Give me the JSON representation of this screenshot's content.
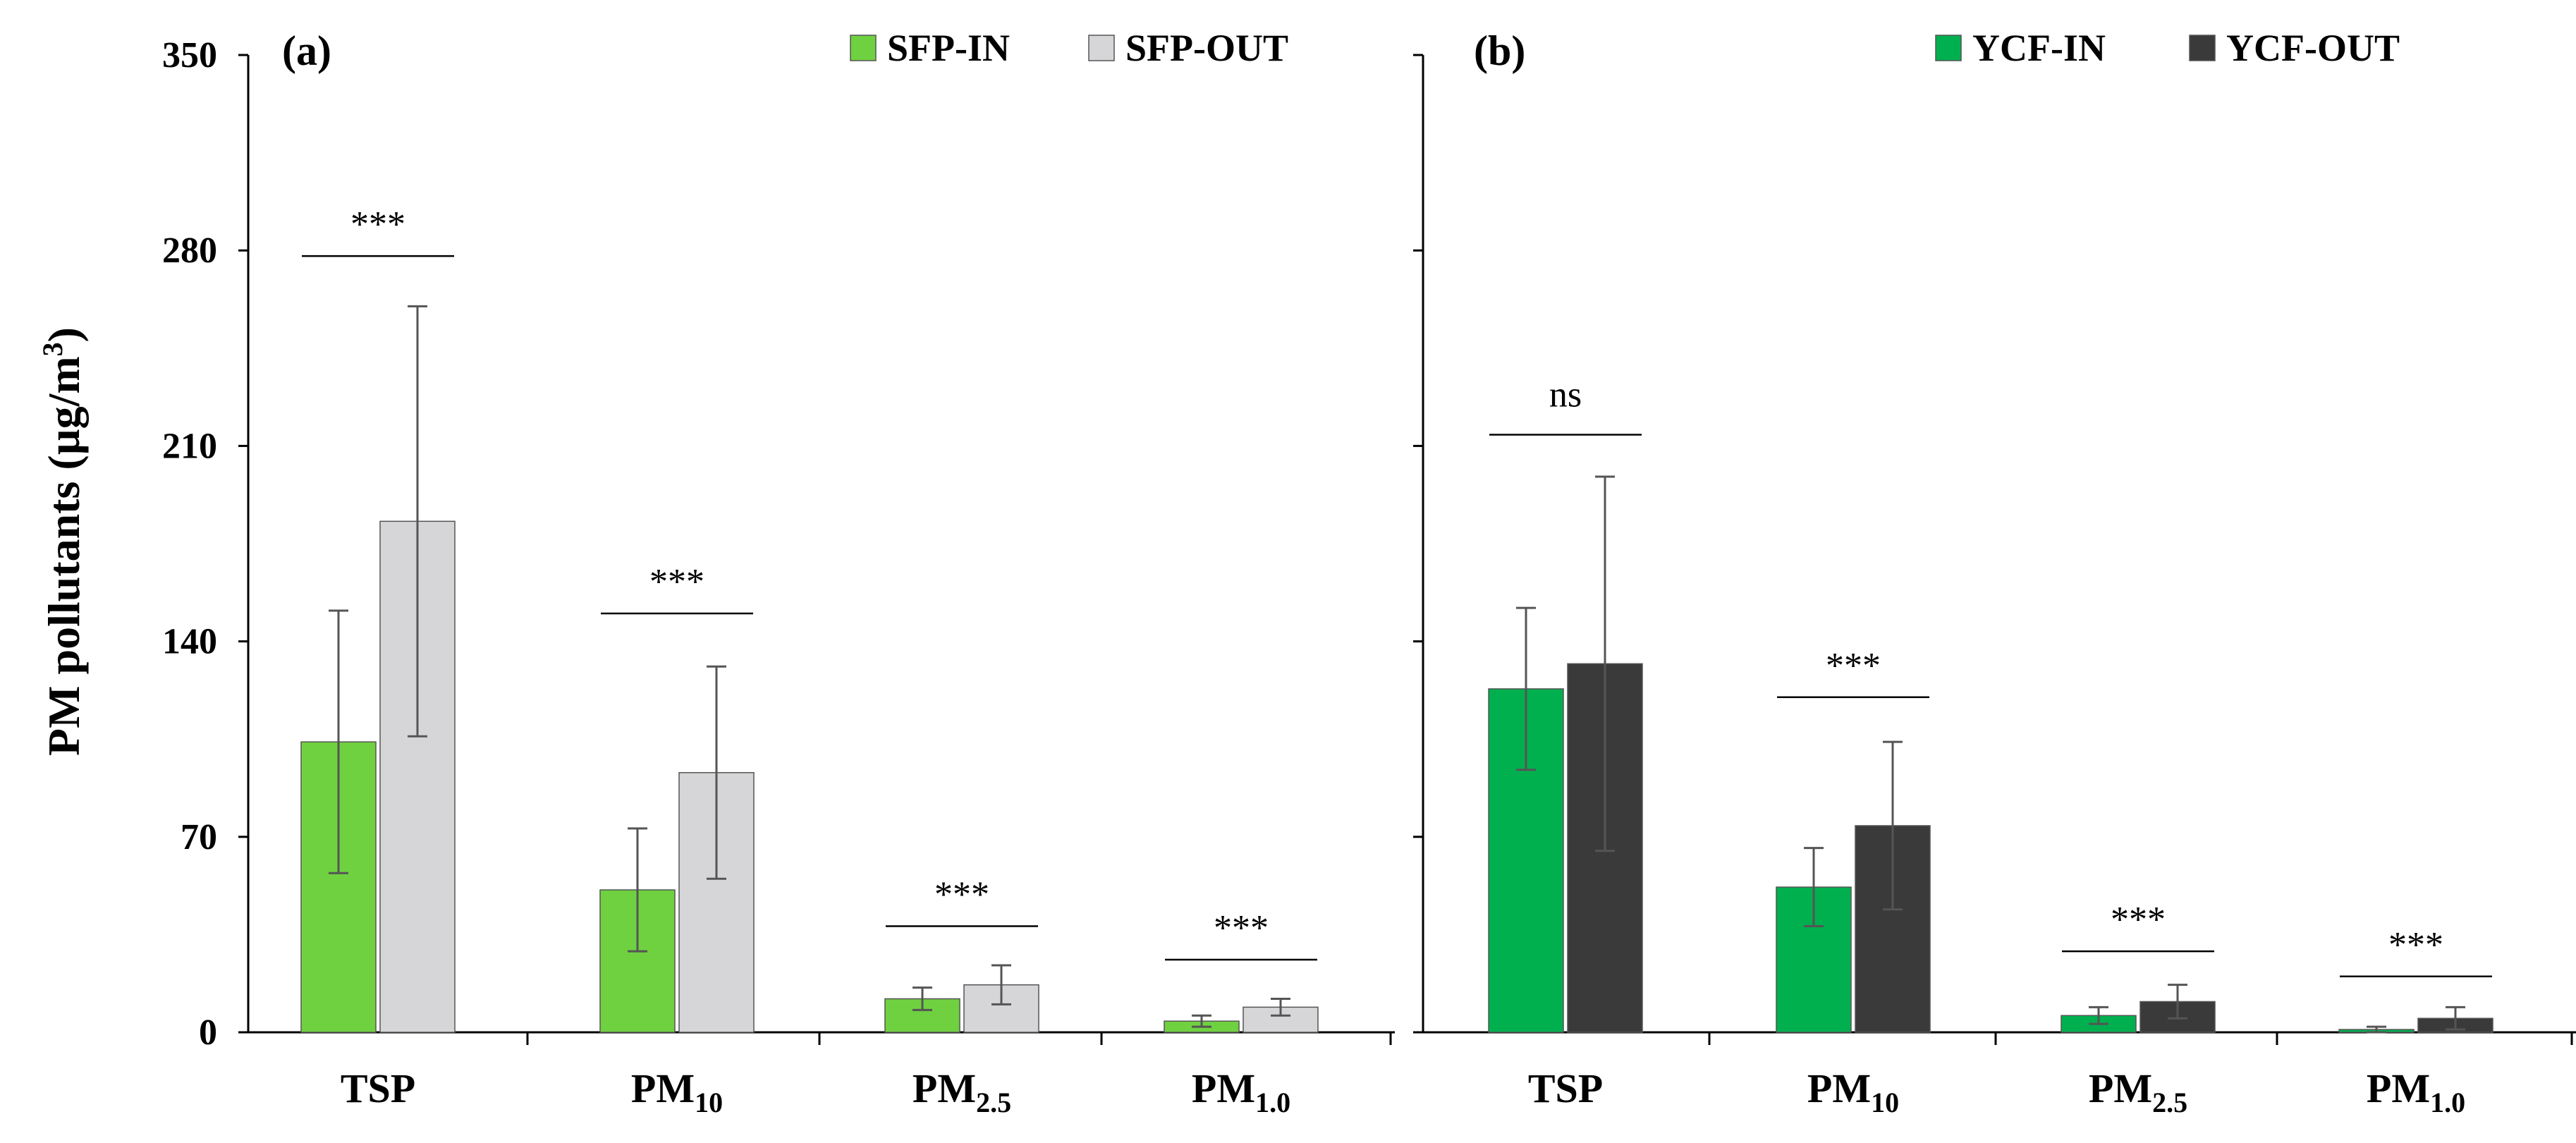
{
  "figure": {
    "ylabel": "PM pollutants (µg/m³)",
    "ylabel_main": "PM pollutants (µg/m",
    "ylabel_sup": "3",
    "ylabel_close": ")",
    "ylim": [
      0,
      350
    ],
    "yticks": [
      "0",
      "70",
      "140",
      "210",
      "280",
      "350"
    ]
  },
  "chart_data": [
    {
      "type": "bar",
      "panel_label": "(a)",
      "categories": [
        "TSP",
        "PM10",
        "PM2.5",
        "PM1.0"
      ],
      "category_display": [
        {
          "base": "TSP",
          "sub": ""
        },
        {
          "base": "PM",
          "sub": "10"
        },
        {
          "base": "PM",
          "sub": "2.5"
        },
        {
          "base": "PM",
          "sub": "1.0"
        }
      ],
      "series": [
        {
          "name": "SFP-IN",
          "color": "#6fd140",
          "values": [
            104,
            51,
            12,
            4
          ],
          "errors": [
            47,
            22,
            4,
            2
          ]
        },
        {
          "name": "SFP-OUT",
          "color": "#d6d6d8",
          "values": [
            183,
            93,
            17,
            9
          ],
          "errors": [
            77,
            38,
            7,
            3
          ]
        }
      ],
      "significance": [
        "***",
        "***",
        "***",
        "***"
      ],
      "significance_line_y": [
        278,
        150,
        38,
        26
      ],
      "ylim": [
        0,
        350
      ],
      "legend": "top-right"
    },
    {
      "type": "bar",
      "panel_label": "(b)",
      "categories": [
        "TSP",
        "PM10",
        "PM2.5",
        "PM1.0"
      ],
      "category_display": [
        {
          "base": "TSP",
          "sub": ""
        },
        {
          "base": "PM",
          "sub": "10"
        },
        {
          "base": "PM",
          "sub": "2.5"
        },
        {
          "base": "PM",
          "sub": "1.0"
        }
      ],
      "series": [
        {
          "name": "YCF-IN",
          "color": "#00b04f",
          "values": [
            123,
            52,
            6,
            1
          ],
          "errors": [
            29,
            14,
            3,
            1
          ]
        },
        {
          "name": "YCF-OUT",
          "color": "#3a3a3a",
          "values": [
            132,
            74,
            11,
            5
          ],
          "errors": [
            67,
            30,
            6,
            4
          ]
        }
      ],
      "significance": [
        "ns",
        "***",
        "***",
        "***"
      ],
      "significance_line_y": [
        214,
        120,
        29,
        20
      ],
      "ylim": [
        0,
        350
      ],
      "legend": "top-right"
    }
  ]
}
